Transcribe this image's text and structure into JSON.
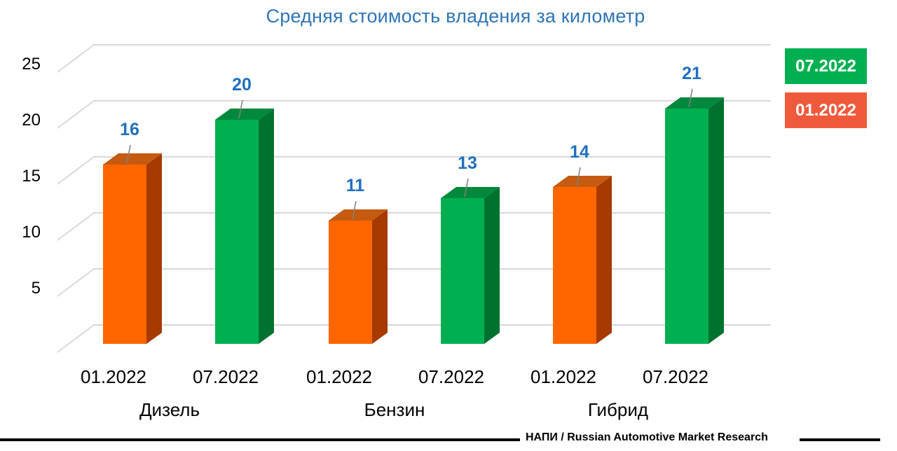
{
  "chart_data": {
    "type": "bar",
    "title": "Средняя стоимость владения за километр",
    "groups": [
      "Дизель",
      "Бензин",
      "Гибрид"
    ],
    "categories": [
      "01.2022",
      "07.2022",
      "01.2022",
      "07.2022",
      "01.2022",
      "07.2022"
    ],
    "bars": [
      {
        "group": "Дизель",
        "period": "01.2022",
        "value": 16
      },
      {
        "group": "Дизель",
        "period": "07.2022",
        "value": 20
      },
      {
        "group": "Бензин",
        "period": "01.2022",
        "value": 11
      },
      {
        "group": "Бензин",
        "period": "07.2022",
        "value": 13
      },
      {
        "group": "Гибрид",
        "period": "01.2022",
        "value": 14
      },
      {
        "group": "Гибрид",
        "period": "07.2022",
        "value": 21
      }
    ],
    "series": [
      {
        "name": "07.2022",
        "color": "#00b050"
      },
      {
        "name": "01.2022",
        "color": "#ff6600"
      }
    ],
    "yticks": [
      5,
      10,
      15,
      20,
      25
    ],
    "ylim": [
      0,
      25
    ],
    "grid": true,
    "legend_position": "right",
    "colors": {
      "orange_front": "#ff6600",
      "orange_side": "#a63a00",
      "orange_top": "#c55a11",
      "green_front": "#00b050",
      "green_side": "#00722f",
      "green_top": "#00893c",
      "label": "#1f6fc0",
      "grid": "#d9d9d9",
      "legend_orange": "#f05a3c"
    }
  },
  "footer": "НАПИ / Russian Automotive Market Research"
}
